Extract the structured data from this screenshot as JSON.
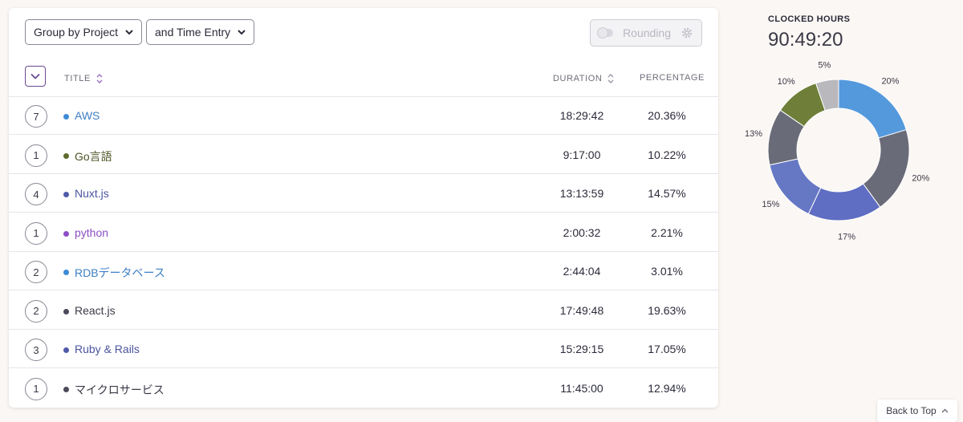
{
  "toolbar": {
    "group_label": "Group by Project",
    "sub_group_label": "and Time Entry",
    "rounding_label": "Rounding"
  },
  "table": {
    "headers": {
      "title": "TITLE",
      "duration": "DURATION",
      "percentage": "PERCENTAGE"
    },
    "rows": [
      {
        "count": "7",
        "title": "AWS",
        "duration": "18:29:42",
        "percentage": "20.36%",
        "color": "#3e8ad6",
        "text_color": "#3e7fc4"
      },
      {
        "count": "1",
        "title": "Go言語",
        "duration": "9:17:00",
        "percentage": "10.22%",
        "color": "#5d6a2e",
        "text_color": "#4c5426"
      },
      {
        "count": "4",
        "title": "Nuxt.js",
        "duration": "13:13:59",
        "percentage": "14.57%",
        "color": "#4f5aa8",
        "text_color": "#4b549e"
      },
      {
        "count": "1",
        "title": "python",
        "duration": "2:00:32",
        "percentage": "2.21%",
        "color": "#8e4ec6",
        "text_color": "#8b4fc2"
      },
      {
        "count": "2",
        "title": "RDBデータベース",
        "duration": "2:44:04",
        "percentage": "3.01%",
        "color": "#3e8ad6",
        "text_color": "#3e7fc4"
      },
      {
        "count": "2",
        "title": "React.js",
        "duration": "17:49:48",
        "percentage": "19.63%",
        "color": "#4a4a5c",
        "text_color": "#3a3a48"
      },
      {
        "count": "3",
        "title": "Ruby & Rails",
        "duration": "15:29:15",
        "percentage": "17.05%",
        "color": "#4f5aa8",
        "text_color": "#4b549e"
      },
      {
        "count": "1",
        "title": "マイクロサービス",
        "duration": "11:45:00",
        "percentage": "12.94%",
        "color": "#4a4a5c",
        "text_color": "#3a3a48"
      }
    ]
  },
  "summary": {
    "label": "CLOCKED HOURS",
    "total": "90:49:20"
  },
  "chart_data": {
    "type": "pie",
    "donut": true,
    "slices": [
      {
        "label": "20%",
        "value": 20.36,
        "color": "#5599dd"
      },
      {
        "label": "20%",
        "value": 19.63,
        "color": "#6a6b78"
      },
      {
        "label": "17%",
        "value": 17.05,
        "color": "#5f6dc2"
      },
      {
        "label": "15%",
        "value": 14.57,
        "color": "#6677c4"
      },
      {
        "label": "13%",
        "value": 12.94,
        "color": "#6a6b78"
      },
      {
        "label": "10%",
        "value": 10.22,
        "color": "#6f7f3a"
      },
      {
        "label": "5%",
        "value": 5.23,
        "color": "#b9b9bd"
      }
    ]
  },
  "back_to_top": {
    "label": "Back to Top"
  },
  "icons": {
    "chevron": "chevron-down-icon",
    "sort": "sort-icon",
    "gear": "gear-icon",
    "up": "chevron-up-icon"
  }
}
